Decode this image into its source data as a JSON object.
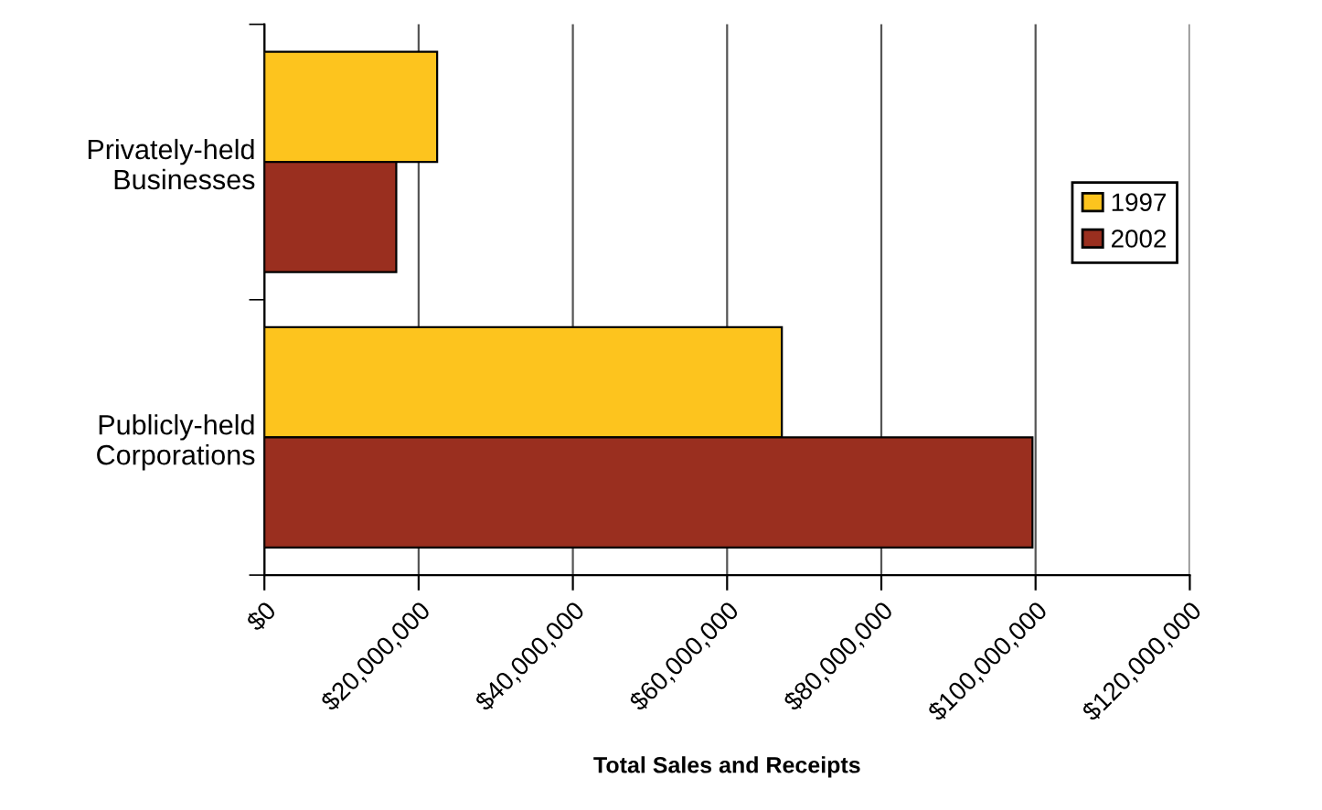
{
  "chart_data": {
    "type": "bar",
    "orientation": "horizontal",
    "xlabel": "Total Sales and Receipts",
    "categories": [
      "Privately-held\nBusinesses",
      "Publicly-held\nCorporations"
    ],
    "series": [
      {
        "name": "1997",
        "color": "#fdc41e",
        "values": [
          22400000,
          67100000
        ]
      },
      {
        "name": "2002",
        "color": "#9a2f1f",
        "values": [
          17100000,
          99600000
        ]
      }
    ],
    "xlim": [
      0,
      120000000
    ],
    "xticks": [
      {
        "value": 0,
        "label": "$0"
      },
      {
        "value": 20000000,
        "label": "$20,000,000"
      },
      {
        "value": 40000000,
        "label": "$40,000,000"
      },
      {
        "value": 60000000,
        "label": "$60,000,000"
      },
      {
        "value": 80000000,
        "label": "$80,000,000"
      },
      {
        "value": 100000000,
        "label": "$100,000,000"
      },
      {
        "value": 120000000,
        "label": "$120,000,000"
      }
    ],
    "grid": "x",
    "legend": "right"
  }
}
